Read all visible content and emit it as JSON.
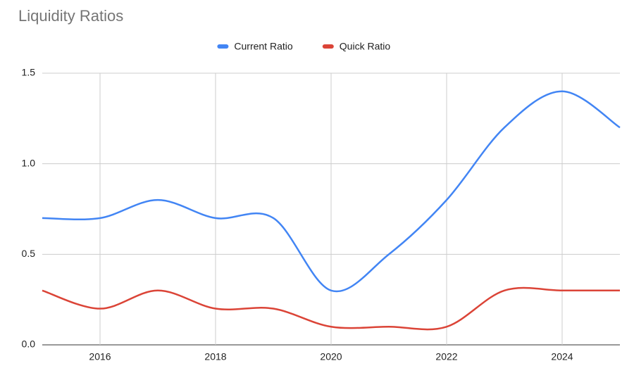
{
  "chart_data": {
    "type": "line",
    "title": "Liquidity Ratios",
    "x": [
      2015,
      2016,
      2017,
      2018,
      2019,
      2020,
      2021,
      2022,
      2023,
      2024,
      2025
    ],
    "series": [
      {
        "name": "Current Ratio",
        "color": "#4285f4",
        "values": [
          0.7,
          0.7,
          0.8,
          0.7,
          0.7,
          0.3,
          0.5,
          0.8,
          1.2,
          1.4,
          1.2
        ]
      },
      {
        "name": "Quick Ratio",
        "color": "#db4437",
        "values": [
          0.3,
          0.2,
          0.3,
          0.2,
          0.2,
          0.1,
          0.1,
          0.1,
          0.3,
          0.3,
          0.3
        ]
      }
    ],
    "xlim": [
      2015,
      2025
    ],
    "xticks": [
      2016,
      2018,
      2020,
      2022,
      2024
    ],
    "ylim": [
      0,
      1.5
    ],
    "yticks": [
      {
        "value": 0,
        "label": "0.0"
      },
      0.5,
      {
        "value": 1,
        "label": "1.0"
      },
      1.5
    ],
    "grid": true,
    "legend": "top"
  }
}
